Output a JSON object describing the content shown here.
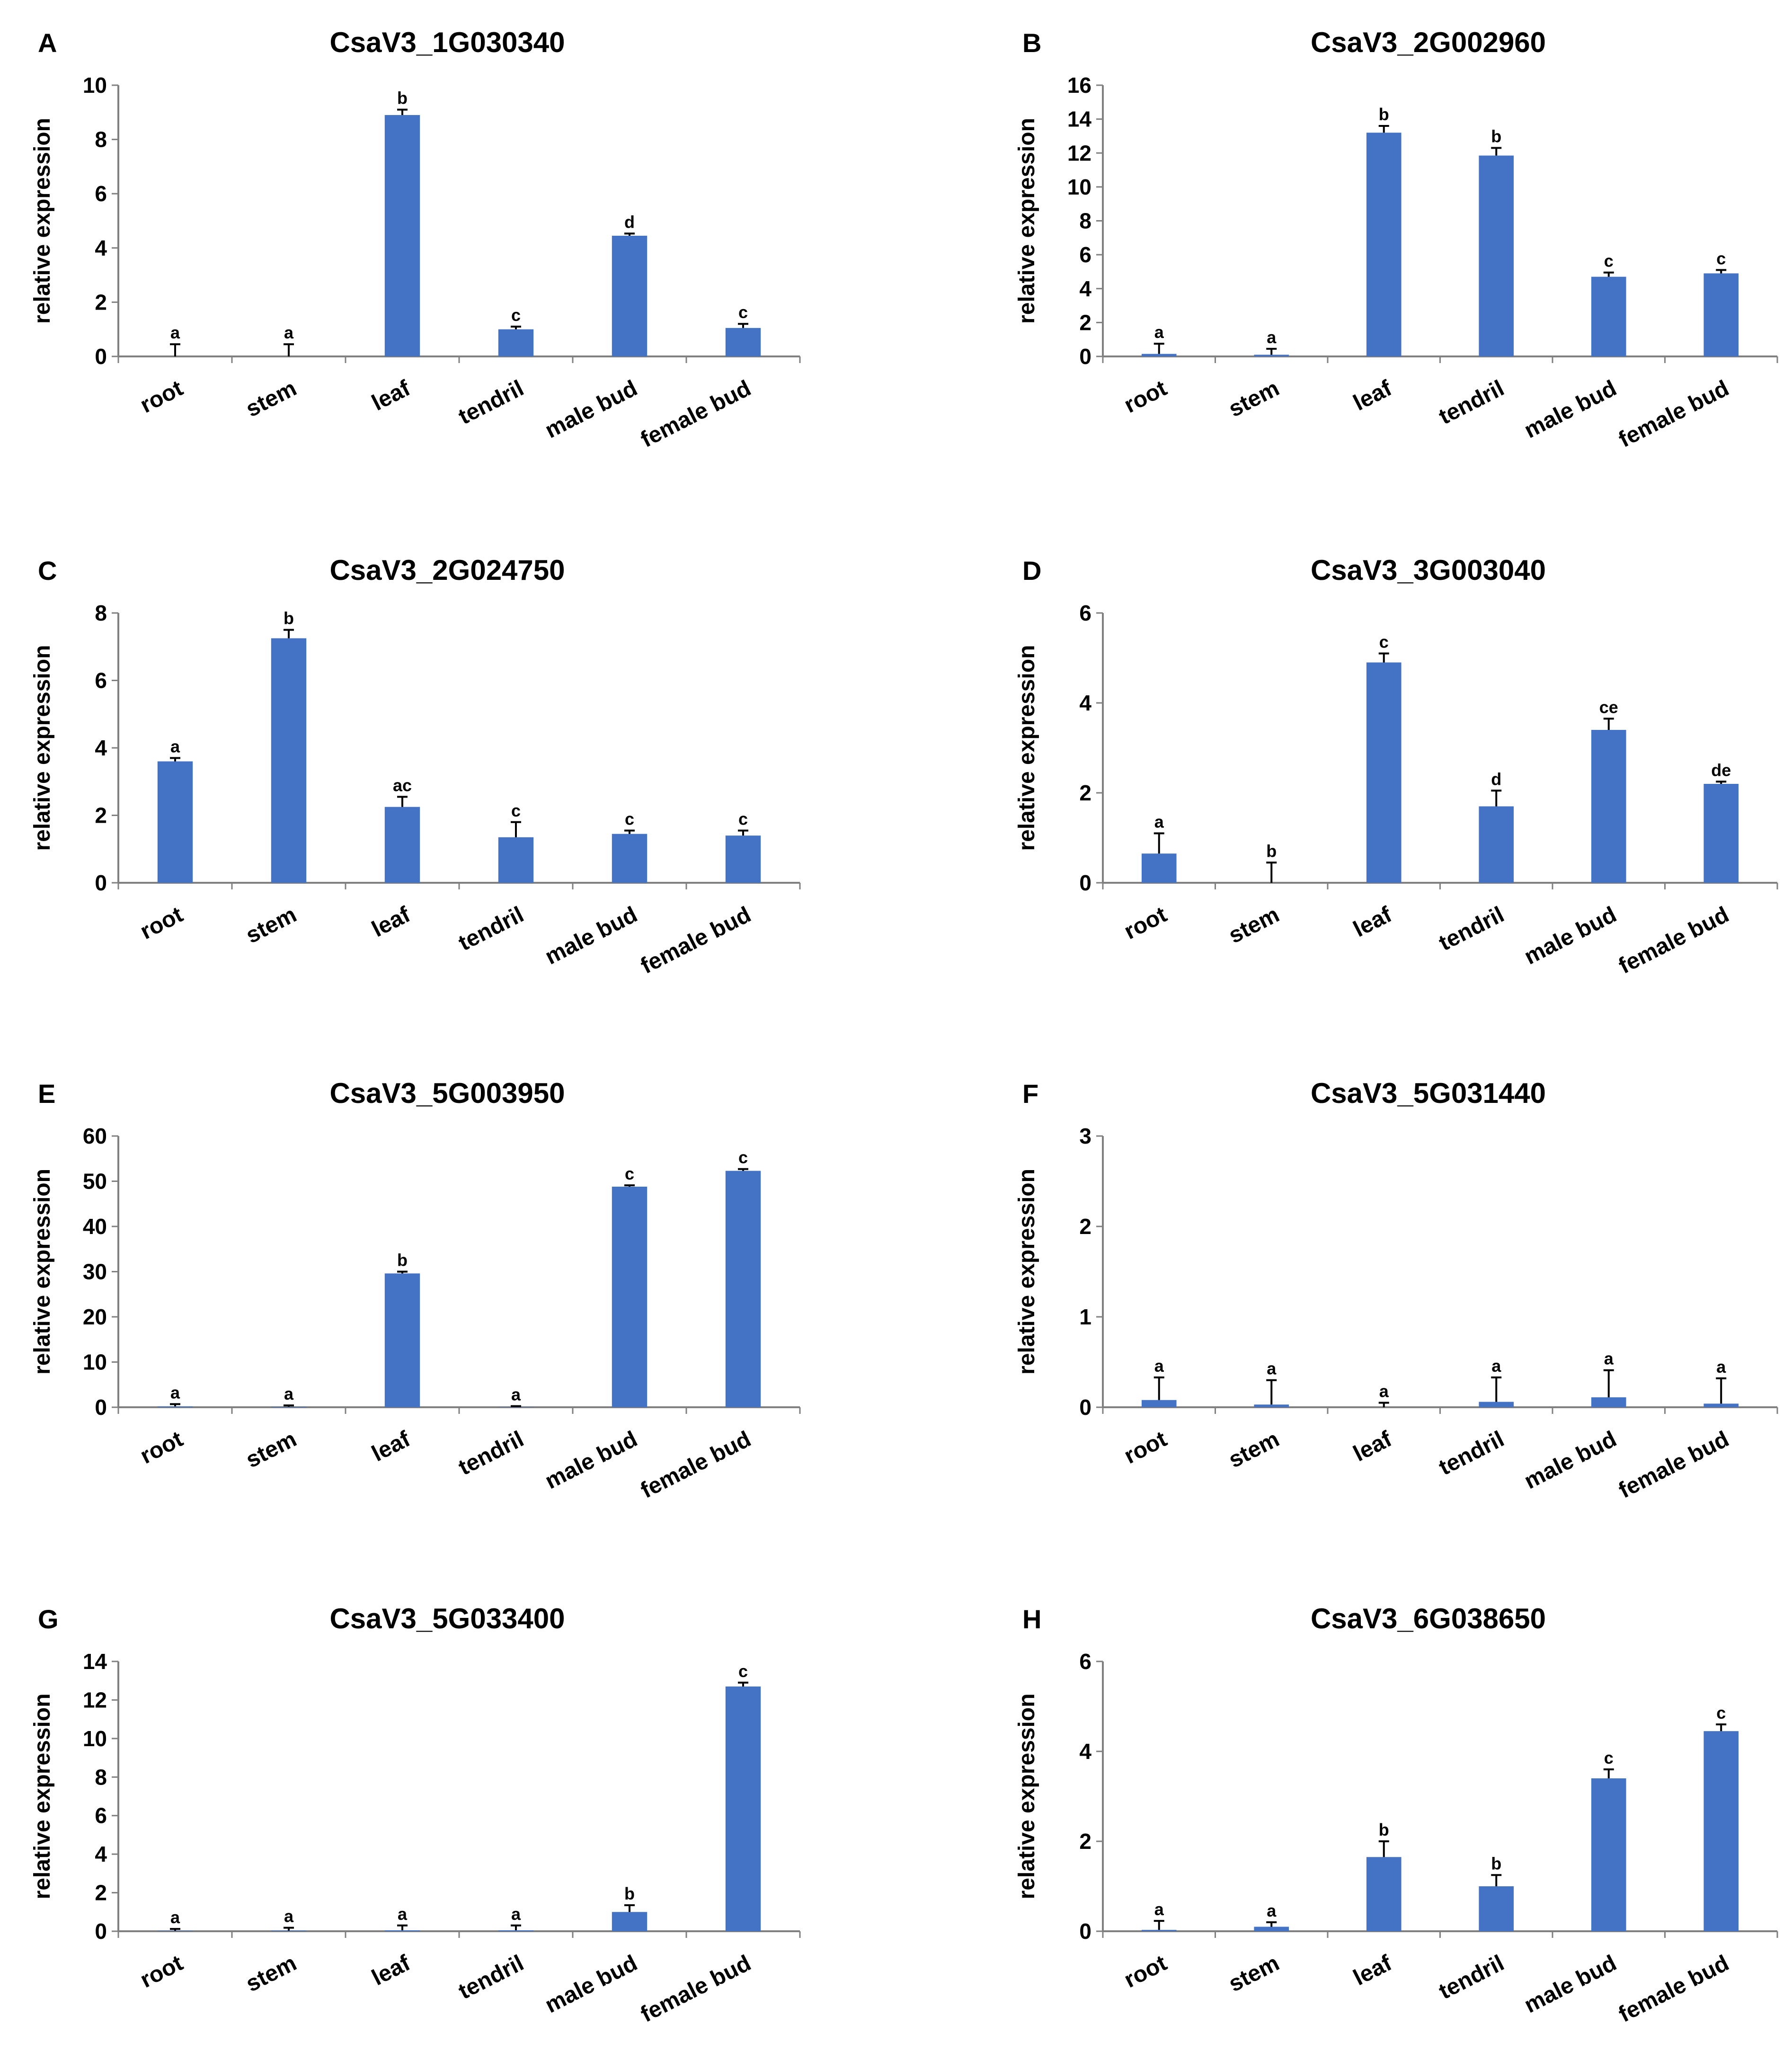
{
  "colors": {
    "bar": "#4472C4",
    "axis": "#808080",
    "text": "#000000"
  },
  "chart_data": [
    {
      "panel": "A",
      "type": "bar",
      "title": "CsaV3_1G030340",
      "ylabel": "relative expression",
      "categories": [
        "root",
        "stem",
        "leaf",
        "tendril",
        "male bud",
        "female bud"
      ],
      "values": [
        0.0,
        0.0,
        8.9,
        1.0,
        4.45,
        1.05
      ],
      "errors": [
        0.45,
        0.45,
        0.2,
        0.1,
        0.08,
        0.15
      ],
      "labels": [
        "a",
        "a",
        "b",
        "c",
        "d",
        "c"
      ],
      "ylim": [
        0,
        10
      ],
      "yticks": [
        0,
        2,
        4,
        6,
        8,
        10
      ]
    },
    {
      "panel": "B",
      "type": "bar",
      "title": "CsaV3_2G002960",
      "ylabel": "relative expression",
      "categories": [
        "root",
        "stem",
        "leaf",
        "tendril",
        "male bud",
        "female bud"
      ],
      "values": [
        0.15,
        0.1,
        13.2,
        11.85,
        4.7,
        4.9
      ],
      "errors": [
        0.6,
        0.35,
        0.4,
        0.45,
        0.25,
        0.2
      ],
      "labels": [
        "a",
        "a",
        "b",
        "b",
        "c",
        "c"
      ],
      "ylim": [
        0,
        16
      ],
      "yticks": [
        0,
        2,
        4,
        6,
        8,
        10,
        12,
        14,
        16
      ]
    },
    {
      "panel": "C",
      "type": "bar",
      "title": "CsaV3_2G024750",
      "ylabel": "relative expression",
      "categories": [
        "root",
        "stem",
        "leaf",
        "tendril",
        "male bud",
        "female bud"
      ],
      "values": [
        3.6,
        7.25,
        2.25,
        1.35,
        1.45,
        1.4
      ],
      "errors": [
        0.1,
        0.25,
        0.3,
        0.45,
        0.1,
        0.15
      ],
      "labels": [
        "a",
        "b",
        "ac",
        "c",
        "c",
        "c"
      ],
      "ylim": [
        0,
        8
      ],
      "yticks": [
        0,
        2,
        4,
        6,
        8
      ]
    },
    {
      "panel": "D",
      "type": "bar",
      "title": "CsaV3_3G003040",
      "ylabel": "relative expression",
      "categories": [
        "root",
        "stem",
        "leaf",
        "tendril",
        "male bud",
        "female bud"
      ],
      "values": [
        0.65,
        0.0,
        4.9,
        1.7,
        3.4,
        2.2
      ],
      "errors": [
        0.45,
        0.45,
        0.2,
        0.35,
        0.25,
        0.05
      ],
      "labels": [
        "a",
        "b",
        "c",
        "d",
        "ce",
        "de"
      ],
      "ylim": [
        0,
        6
      ],
      "yticks": [
        0,
        2,
        4,
        6
      ]
    },
    {
      "panel": "E",
      "type": "bar",
      "title": "CsaV3_5G003950",
      "ylabel": "relative expression",
      "categories": [
        "root",
        "stem",
        "leaf",
        "tendril",
        "male bud",
        "female bud"
      ],
      "values": [
        0.2,
        0.1,
        29.6,
        0.05,
        48.8,
        52.3
      ],
      "errors": [
        0.5,
        0.3,
        0.4,
        0.2,
        0.3,
        0.4
      ],
      "labels": [
        "a",
        "a",
        "b",
        "a",
        "c",
        "c"
      ],
      "ylim": [
        0,
        60
      ],
      "yticks": [
        0,
        10,
        20,
        30,
        40,
        50,
        60
      ]
    },
    {
      "panel": "F",
      "type": "bar",
      "title": "CsaV3_5G031440",
      "ylabel": "relative expression",
      "categories": [
        "root",
        "stem",
        "leaf",
        "tendril",
        "male bud",
        "female bud"
      ],
      "values": [
        0.08,
        0.03,
        0.0,
        0.06,
        0.11,
        0.04
      ],
      "errors": [
        0.25,
        0.27,
        0.05,
        0.27,
        0.3,
        0.28
      ],
      "labels": [
        "a",
        "a",
        "a",
        "a",
        "a",
        "a"
      ],
      "ylim": [
        0,
        3
      ],
      "yticks": [
        0,
        1,
        2,
        3
      ]
    },
    {
      "panel": "G",
      "type": "bar",
      "title": "CsaV3_5G033400",
      "ylabel": "relative expression",
      "categories": [
        "root",
        "stem",
        "leaf",
        "tendril",
        "male bud",
        "female bud"
      ],
      "values": [
        0.02,
        0.03,
        0.05,
        0.05,
        1.0,
        12.7
      ],
      "errors": [
        0.1,
        0.15,
        0.25,
        0.25,
        0.35,
        0.2
      ],
      "labels": [
        "a",
        "a",
        "a",
        "a",
        "b",
        "c"
      ],
      "ylim": [
        0,
        14
      ],
      "yticks": [
        0,
        2,
        4,
        6,
        8,
        10,
        12,
        14
      ]
    },
    {
      "panel": "H",
      "type": "bar",
      "title": "CsaV3_6G038650",
      "ylabel": "relative expression",
      "categories": [
        "root",
        "stem",
        "leaf",
        "tendril",
        "male bud",
        "female bud"
      ],
      "values": [
        0.03,
        0.1,
        1.65,
        1.0,
        3.4,
        4.45
      ],
      "errors": [
        0.2,
        0.1,
        0.35,
        0.25,
        0.2,
        0.15
      ],
      "labels": [
        "a",
        "a",
        "b",
        "b",
        "c",
        "c"
      ],
      "ylim": [
        0,
        6
      ],
      "yticks": [
        0,
        2,
        4,
        6
      ]
    }
  ]
}
